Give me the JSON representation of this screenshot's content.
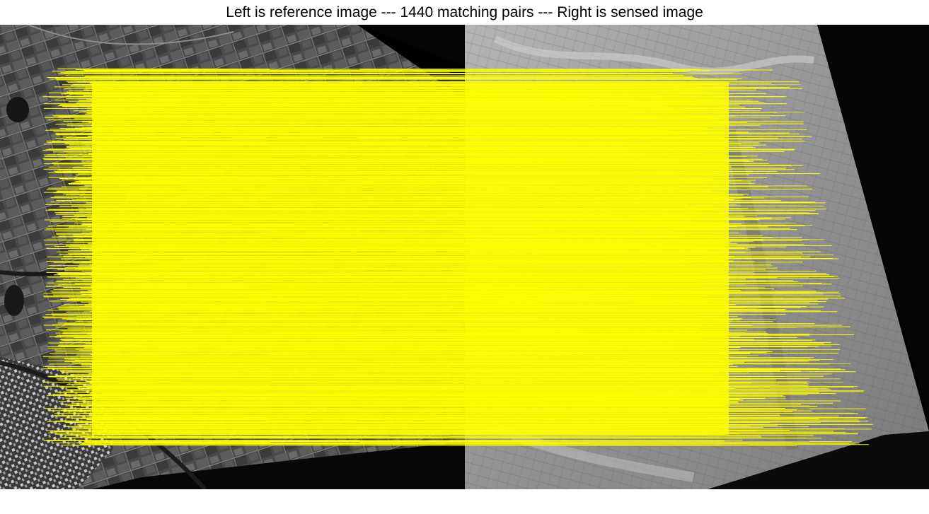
{
  "title": "Left is reference image --- 1440 matching pairs --- Right is sensed image",
  "match_line_color": "#ffff00",
  "background_color": "#000000",
  "reference_image": {
    "description_icon": "reference-image",
    "tone": "dark gray satellite photo"
  },
  "sensed_image": {
    "description_icon": "sensed-image",
    "tone": "light gray satellite photo"
  }
}
